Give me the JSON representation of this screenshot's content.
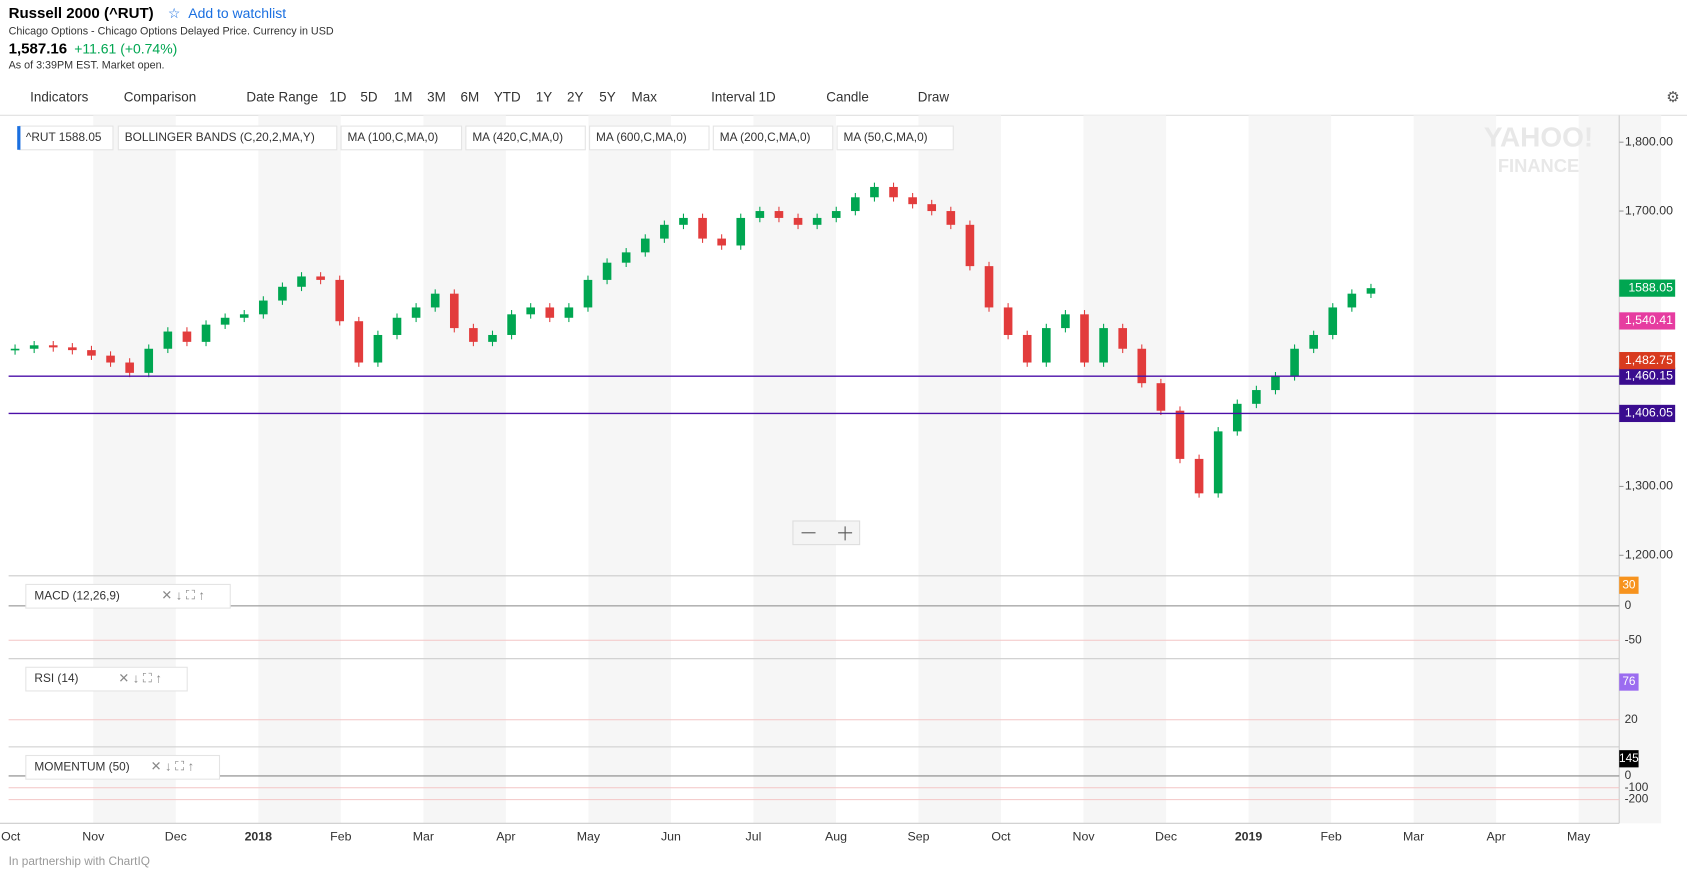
{
  "header": {
    "title": "Russell 2000 (^RUT)",
    "watchlist": "Add to watchlist",
    "source": "Chicago Options - Chicago Options Delayed Price. Currency in USD",
    "price": "1,587.16",
    "change": "+11.61 (+0.74%)",
    "asof": "As of 3:39PM EST. Market open."
  },
  "toolbar": [
    "Indicators",
    "Comparison",
    "Date Range",
    "1D",
    "5D",
    "1M",
    "3M",
    "6M",
    "YTD",
    "1Y",
    "2Y",
    "5Y",
    "Max",
    "Interval",
    "1D",
    "Candle",
    "Draw"
  ],
  "studies": [
    "^RUT  1588.05",
    "BOLLINGER BANDS (C,20,2,MA,Y)",
    "MA (100,C,MA,0)",
    "MA (420,C,MA,0)",
    "MA (600,C,MA,0)",
    "MA (200,C,MA,0)",
    "MA (50,C,MA,0)"
  ],
  "watermark": [
    "YAHOO!",
    "FINANCE"
  ],
  "chart": {
    "type": "candle",
    "months": [
      "Oct",
      "Nov",
      "Dec",
      "2018",
      "Feb",
      "Mar",
      "Apr",
      "May",
      "Jun",
      "Jul",
      "Aug",
      "Sep",
      "Oct",
      "Nov",
      "Dec",
      "2019",
      "Feb",
      "Mar",
      "Apr",
      "May"
    ],
    "closes": [
      1500,
      1505,
      1502,
      1498,
      1490,
      1480,
      1465,
      1500,
      1525,
      1510,
      1535,
      1545,
      1550,
      1570,
      1590,
      1605,
      1600,
      1540,
      1480,
      1520,
      1545,
      1560,
      1580,
      1530,
      1510,
      1520,
      1550,
      1560,
      1545,
      1560,
      1600,
      1625,
      1640,
      1660,
      1680,
      1690,
      1660,
      1650,
      1690,
      1700,
      1690,
      1680,
      1690,
      1700,
      1720,
      1735,
      1720,
      1710,
      1700,
      1680,
      1620,
      1560,
      1520,
      1480,
      1530,
      1550,
      1480,
      1530,
      1500,
      1450,
      1410,
      1340,
      1290,
      1380,
      1420,
      1440,
      1460,
      1500,
      1520,
      1560,
      1580,
      1588
    ],
    "ylim": [
      1178,
      1839
    ],
    "yticks": [
      {
        "value": 1200,
        "label": "1,200.00"
      },
      {
        "value": 1300,
        "label": "1,300.00"
      },
      {
        "value": 1700,
        "label": "1,700.00"
      },
      {
        "value": 1800,
        "label": "1,800.00"
      }
    ],
    "levels": [
      {
        "value": 1460.15,
        "label": "1,460.15"
      },
      {
        "value": 1406.05,
        "label": "1,406.05"
      }
    ],
    "flags": [
      {
        "value": 1588.05,
        "label": "1588.05",
        "color": "#00a651"
      },
      {
        "value": 1540.41,
        "label": "1,540.41",
        "color": "#e63ca0"
      },
      {
        "value": 1482.75,
        "label": "1,482.75",
        "color": "#d83a1e"
      }
    ]
  },
  "panels": [
    {
      "name": "MACD (12,26,9)",
      "ylim": [
        -69,
        39
      ],
      "ticks": [
        0,
        -50
      ],
      "flag": {
        "value": 30,
        "label": "30",
        "color": "#f7931e"
      }
    },
    {
      "name": "RSI (14)",
      "ylim": [
        -14,
        106
      ],
      "ticks": [
        20
      ],
      "flag": {
        "value": 76,
        "label": "76",
        "color": "#9b6cf0"
      }
    },
    {
      "name": "MOMENTUM (50)",
      "ylim": [
        -400,
        218
      ],
      "ticks": [
        0,
        -100,
        -200
      ],
      "flag": {
        "value": 145,
        "label": "145",
        "color": "#000000"
      }
    }
  ],
  "footer": "In partnership with ChartIQ"
}
